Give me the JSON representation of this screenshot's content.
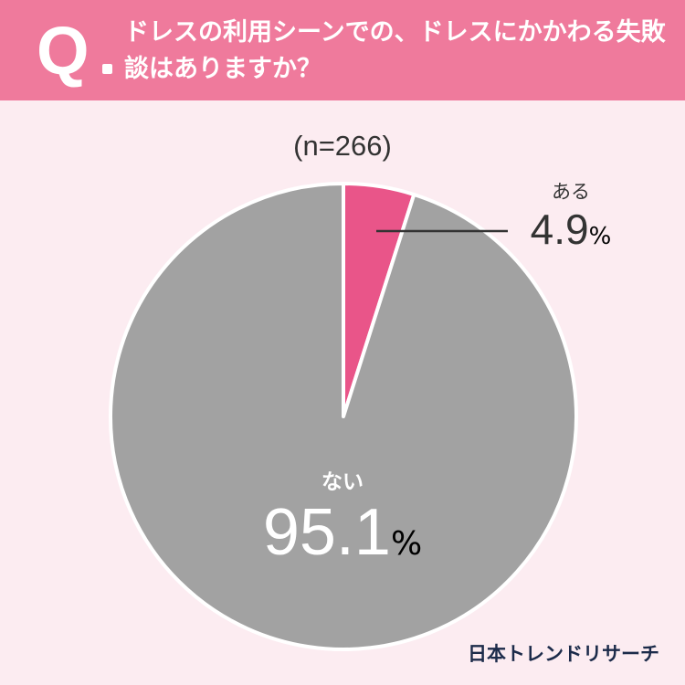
{
  "header": {
    "q_letter": "Q",
    "question": "ドレスの利用シーンでの、ドレスにかかわる失敗談はありますか？"
  },
  "sample_size": "(n=266)",
  "callouts": {
    "aru_label": "ある",
    "aru_value": "4.9",
    "nai_label": "ない",
    "nai_value": "95.1",
    "percent_sign": "%"
  },
  "brand": "日本トレンドリサーチ",
  "colors": {
    "header_bg": "#ef7a9c",
    "page_bg": "#fcecf1",
    "aru": "#e95589",
    "nai": "#a2a2a2"
  },
  "chart_data": {
    "type": "pie",
    "categories": [
      "ある",
      "ない"
    ],
    "values": [
      4.9,
      95.1
    ],
    "unit": "%",
    "n": 266
  }
}
